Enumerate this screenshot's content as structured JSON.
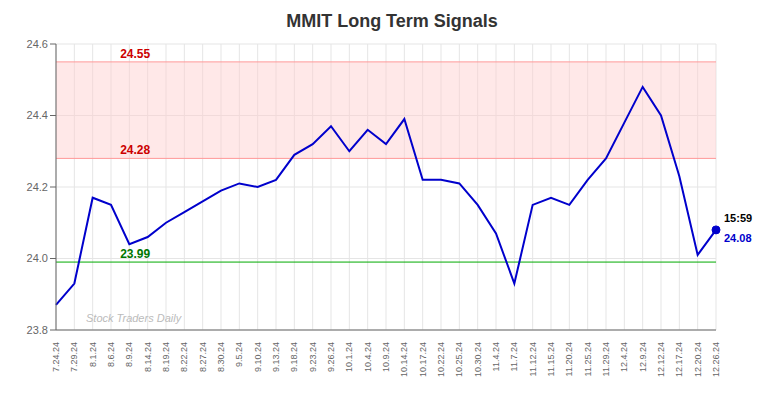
{
  "chart_data": {
    "type": "line",
    "title": "MMIT Long Term Signals",
    "categories": [
      "7.24.24",
      "7.29.24",
      "8.1.24",
      "8.6.24",
      "8.9.24",
      "8.14.24",
      "8.19.24",
      "8.22.24",
      "8.27.24",
      "8.30.24",
      "9.5.24",
      "9.10.24",
      "9.13.24",
      "9.18.24",
      "9.23.24",
      "9.26.24",
      "10.1.24",
      "10.4.24",
      "10.9.24",
      "10.14.24",
      "10.17.24",
      "10.22.24",
      "10.25.24",
      "10.30.24",
      "11.4.24",
      "11.7.24",
      "11.12.24",
      "11.15.24",
      "11.20.24",
      "11.25.24",
      "11.29.24",
      "12.4.24",
      "12.9.24",
      "12.12.24",
      "12.17.24",
      "12.20.24",
      "12.26.24"
    ],
    "values": [
      23.87,
      23.93,
      24.17,
      24.15,
      24.04,
      24.06,
      24.1,
      24.13,
      24.16,
      24.19,
      24.21,
      24.2,
      24.22,
      24.29,
      24.32,
      24.37,
      24.3,
      24.36,
      24.32,
      24.39,
      24.22,
      24.22,
      24.21,
      24.15,
      24.07,
      23.93,
      24.15,
      24.17,
      24.15,
      24.22,
      24.28,
      24.38,
      24.48,
      24.4,
      24.23,
      24.01,
      24.08
    ],
    "color": "#0000cc",
    "ylim": [
      23.8,
      24.6
    ],
    "yticks": [
      23.8,
      {
        "value": 24.0,
        "label": "24.0"
      },
      24.2,
      24.4,
      24.6
    ],
    "grid": true,
    "hlines": [
      {
        "value": 23.99,
        "color": "#00aa00",
        "label": "23.99",
        "label_color": "#007700"
      },
      {
        "value": 24.28,
        "color": "#ff9999",
        "label": "24.28",
        "label_color": "#cc0000"
      },
      {
        "value": 24.55,
        "color": "#ff9999",
        "label": "24.55",
        "label_color": "#cc0000"
      }
    ],
    "band": {
      "from": 24.28,
      "to": 24.55,
      "color": "#ffcccc"
    },
    "end_labels": {
      "time": "15:59",
      "time_color": "#000000",
      "value": "24.08",
      "value_color": "#0000cc"
    },
    "watermark": {
      "text": "Stock Traders Daily",
      "color": "#bbbbbb"
    }
  }
}
